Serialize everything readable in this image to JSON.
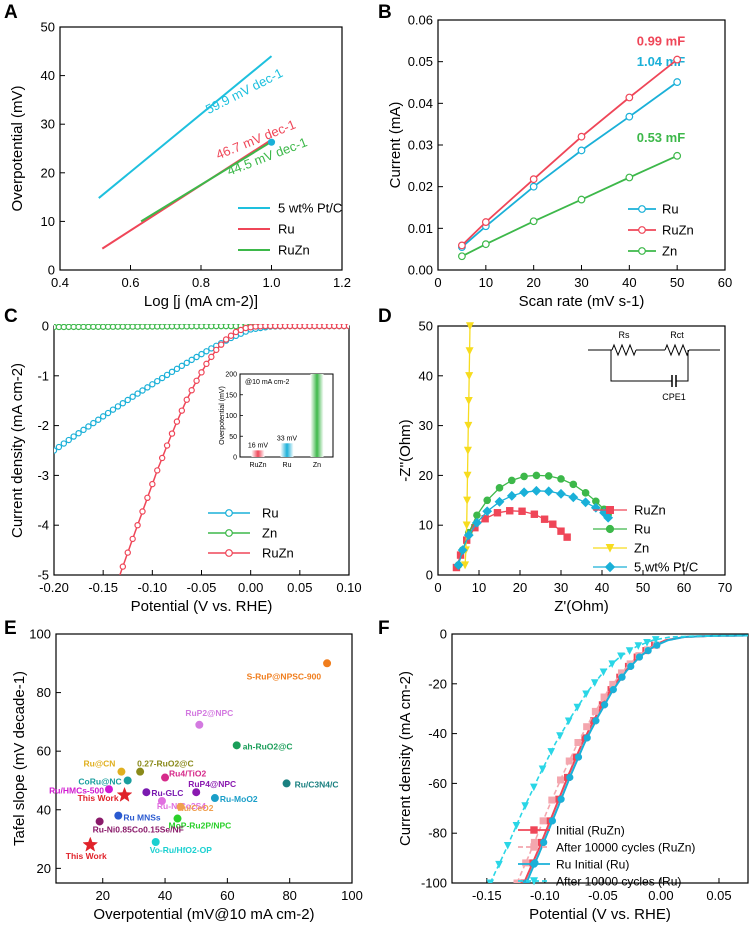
{
  "figure": {
    "panel_labels": [
      "A",
      "B",
      "C",
      "D",
      "E",
      "F"
    ]
  },
  "colors": {
    "pt": "#1ec0de",
    "ru": "#1ab0d8",
    "ruzn": "#ef4658",
    "zn": "#3db84a",
    "pt_yellow": "#f7dc1e",
    "axis": "#000000"
  },
  "chart_data": [
    {
      "panel": "A",
      "type": "line",
      "xlabel": "Log [j (mA cm-2)]",
      "ylabel": "Overpotential  (mV)",
      "xlim": [
        0.4,
        1.2
      ],
      "ylim": [
        0,
        50
      ],
      "xticks": [
        "0.4",
        "0.6",
        "0.8",
        "1.0",
        "1.2"
      ],
      "yticks": [
        "0",
        "10",
        "20",
        "30",
        "40",
        "50"
      ],
      "series": [
        {
          "name": "5 wt% Pt/C",
          "color": "#1ec0de",
          "x": [
            0.51,
            1.0
          ],
          "y": [
            14.8,
            44.0
          ],
          "slope_label": "59.9 mV dec-1"
        },
        {
          "name": "Ru",
          "color": "#ef4658",
          "x": [
            0.52,
            1.0
          ],
          "y": [
            4.4,
            26.8
          ],
          "slope_label": "46.7 mV dec-1"
        },
        {
          "name": "RuZn",
          "color": "#3db84a",
          "x": [
            0.63,
            1.0
          ],
          "y": [
            10.0,
            26.4
          ],
          "slope_label": "44.5 mV dec-1"
        }
      ]
    },
    {
      "panel": "B",
      "type": "line",
      "xlabel": "Scan rate (mV s-1)",
      "ylabel": "Current (mA)",
      "xlim": [
        0,
        60
      ],
      "ylim": [
        0,
        0.06
      ],
      "xticks": [
        "0",
        "10",
        "20",
        "30",
        "40",
        "50",
        "60"
      ],
      "yticks": [
        "0.00",
        "0.01",
        "0.02",
        "0.03",
        "0.04",
        "0.05",
        "0.06"
      ],
      "x": [
        5,
        10,
        20,
        30,
        40,
        50
      ],
      "series": [
        {
          "name": "Ru",
          "color": "#1ab0d8",
          "values": [
            0.0055,
            0.0105,
            0.02,
            0.0287,
            0.0368,
            0.0451
          ],
          "annotation": "1.04 mF"
        },
        {
          "name": "RuZn",
          "color": "#ef4658",
          "values": [
            0.0059,
            0.0115,
            0.0218,
            0.032,
            0.0414,
            0.0505
          ],
          "annotation": "0.99 mF"
        },
        {
          "name": "Zn",
          "color": "#3db84a",
          "values": [
            0.0033,
            0.0062,
            0.0117,
            0.0169,
            0.0222,
            0.0274
          ],
          "annotation": "0.53 mF"
        }
      ]
    },
    {
      "panel": "C",
      "type": "line",
      "xlabel": "Potential (V vs. RHE)",
      "ylabel": "Current density (mA cm-2)",
      "xlim": [
        -0.2,
        0.1
      ],
      "ylim": [
        -5,
        0
      ],
      "xticks": [
        "-0.20",
        "-0.15",
        "-0.10",
        "-0.05",
        "0.00",
        "0.05",
        "0.10"
      ],
      "yticks": [
        "0",
        "-1",
        "-2",
        "-3",
        "-4",
        "-5"
      ],
      "series": [
        {
          "name": "Ru",
          "color": "#1ab0d8",
          "x": [
            -0.2,
            -0.18,
            -0.16,
            -0.14,
            -0.12,
            -0.1,
            -0.08,
            -0.06,
            -0.04,
            -0.02,
            0.0,
            0.02,
            0.04,
            0.1
          ],
          "values": [
            -2.5,
            -2.22,
            -1.95,
            -1.68,
            -1.42,
            -1.17,
            -0.92,
            -0.68,
            -0.45,
            -0.24,
            -0.07,
            -0.01,
            0.0,
            0.0
          ]
        },
        {
          "name": "Zn",
          "color": "#3db84a",
          "x": [
            -0.2,
            -0.1,
            0.0,
            0.1
          ],
          "values": [
            -0.02,
            -0.01,
            0.0,
            0.0
          ]
        },
        {
          "name": "RuZn",
          "color": "#ef4658",
          "x": [
            -0.133,
            -0.125,
            -0.115,
            -0.105,
            -0.095,
            -0.085,
            -0.075,
            -0.065,
            -0.055,
            -0.045,
            -0.035,
            -0.025,
            -0.015,
            -0.005,
            0.005,
            0.015,
            0.03,
            0.06,
            0.1
          ],
          "values": [
            -5.0,
            -4.55,
            -4.0,
            -3.45,
            -2.9,
            -2.4,
            -1.92,
            -1.48,
            -1.1,
            -0.76,
            -0.48,
            -0.27,
            -0.12,
            -0.04,
            -0.01,
            0.0,
            0.0,
            0.0,
            0.0
          ]
        }
      ],
      "inset": {
        "type": "bar",
        "title": "@10 mA cm-2",
        "ylabel": "Overpotential (mV)",
        "ylim": [
          0,
          200
        ],
        "yticks": [
          "0",
          "50",
          "100",
          "150",
          "200"
        ],
        "categories": [
          "RuZn",
          "Ru",
          "Zn"
        ],
        "values": [
          16,
          33,
          200
        ],
        "value_labels": [
          "16 mV",
          "33 mV",
          ""
        ],
        "colors": [
          "#ef4658",
          "#1ab0d8",
          "#3db84a"
        ]
      }
    },
    {
      "panel": "D",
      "type": "scatter",
      "xlabel": "Z'(Ohm)",
      "ylabel": "-Z''(Ohm)",
      "xlim": [
        0,
        70
      ],
      "ylim": [
        0,
        50
      ],
      "xticks": [
        "0",
        "10",
        "20",
        "30",
        "40",
        "50",
        "60",
        "70"
      ],
      "yticks": [
        "0",
        "10",
        "20",
        "30",
        "40",
        "50"
      ],
      "circuit_labels": [
        "Rs",
        "Rct",
        "CPE1"
      ],
      "series": [
        {
          "name": "RuZn",
          "color": "#ef4658",
          "marker": "square",
          "x": [
            4.5,
            5.5,
            7,
            9,
            11.5,
            14.5,
            17.5,
            20.5,
            23.5,
            26,
            28,
            30,
            31.5
          ],
          "values": [
            1.5,
            4,
            7,
            9.5,
            11.3,
            12.5,
            12.9,
            12.8,
            12.2,
            11.2,
            10.2,
            8.8,
            7.6
          ]
        },
        {
          "name": "Ru",
          "color": "#3db84a",
          "marker": "circle",
          "x": [
            5,
            6,
            7.5,
            9.5,
            12,
            15,
            18,
            21,
            24,
            27,
            30,
            33,
            36,
            38.5,
            40.5,
            41.5
          ],
          "values": [
            2,
            5,
            8.5,
            12,
            15,
            17.5,
            19,
            19.8,
            20.0,
            19.9,
            19.3,
            18.2,
            16.5,
            14.8,
            13.2,
            12.1
          ]
        },
        {
          "name": "Zn",
          "color": "#f7dc1e",
          "marker": "triangle-down",
          "x": [
            6.6,
            6.8,
            7.0,
            7.1,
            7.2,
            7.3,
            7.4,
            7.5,
            7.6,
            7.7,
            7.8
          ],
          "values": [
            2,
            5,
            10,
            15,
            20,
            25,
            30,
            35,
            40,
            45,
            50
          ]
        },
        {
          "name": "5 wt% Pt/C",
          "color": "#1ab0d8",
          "marker": "diamond",
          "x": [
            5,
            6,
            7.5,
            9.5,
            12,
            15,
            18,
            21,
            24,
            27,
            30,
            33,
            36,
            38.5,
            40.5,
            41.5
          ],
          "values": [
            2,
            5,
            8,
            10.5,
            12.8,
            14.7,
            15.9,
            16.6,
            16.9,
            16.8,
            16.3,
            15.6,
            14.6,
            13.5,
            12.5,
            11.5
          ]
        }
      ]
    },
    {
      "panel": "E",
      "type": "scatter",
      "xlabel": "Overpotential  (mV@10 mA cm-2)",
      "ylabel": "Tafel slope (mV decade-1)",
      "xlim": [
        5,
        100
      ],
      "ylim": [
        15,
        100
      ],
      "xticks": [
        "20",
        "40",
        "60",
        "80",
        "100"
      ],
      "yticks": [
        "20",
        "40",
        "60",
        "80",
        "100"
      ],
      "points": [
        {
          "label": "S-RuP@NPSC-900",
          "x": 92,
          "y": 90,
          "color": "#f07d1d"
        },
        {
          "label": "RuP2@NPC",
          "x": 51,
          "y": 69,
          "color": "#d37ae0"
        },
        {
          "label": "ah-RuO2@C",
          "x": 63,
          "y": 62,
          "color": "#1a9e59"
        },
        {
          "label": "0.27-RuO2@C",
          "x": 32,
          "y": 53,
          "color": "#8a8a1a"
        },
        {
          "label": "Ru@CN",
          "x": 26,
          "y": 53,
          "color": "#e0b020"
        },
        {
          "label": "CoRu@NC",
          "x": 28,
          "y": 50,
          "color": "#1a9e9e"
        },
        {
          "label": "Ru/C3N4/C",
          "x": 79,
          "y": 49,
          "color": "#1a8080"
        },
        {
          "label": "Ru4/TiO2",
          "x": 40,
          "y": 51,
          "color": "#d62a8a"
        },
        {
          "label": "Ru/HMCs-500",
          "x": 22,
          "y": 47,
          "color": "#d01ad0"
        },
        {
          "label": "RuP4@NPC",
          "x": 50,
          "y": 46,
          "color": "#8a1ab0"
        },
        {
          "label": "Ru-GLC",
          "x": 34,
          "y": 46,
          "color": "#7a1ab0"
        },
        {
          "label": "Ru-MoO2",
          "x": 56,
          "y": 44,
          "color": "#1a9ec8"
        },
        {
          "label": "This Work",
          "x": 27,
          "y": 45,
          "color": "#e0222a",
          "marker": "star"
        },
        {
          "label": "Ru-NiCo2S4",
          "x": 39,
          "y": 43,
          "color": "#e070e0"
        },
        {
          "label": "Ru/CeO2",
          "x": 45,
          "y": 41,
          "color": "#f0a050"
        },
        {
          "label": "Ru MNSs",
          "x": 25,
          "y": 38,
          "color": "#2a5ad0"
        },
        {
          "label": "MoP-Ru2P/NPC",
          "x": 44,
          "y": 37,
          "color": "#2ad02a"
        },
        {
          "label": "Ru-Ni0.85Co0.15Se/NF",
          "x": 19,
          "y": 36,
          "color": "#8a1a6a"
        },
        {
          "label": "Vo-Ru/HfO2-OP",
          "x": 37,
          "y": 29,
          "color": "#1ad0d0"
        },
        {
          "label": "This Work",
          "x": 16,
          "y": 28,
          "color": "#e0222a",
          "marker": "star"
        }
      ]
    },
    {
      "panel": "F",
      "type": "line",
      "xlabel": "Potential (V vs. RHE)",
      "ylabel": "Current density (mA cm-2)",
      "xlim": [
        -0.18,
        0.075
      ],
      "ylim": [
        -100,
        0
      ],
      "xticks": [
        "-0.15",
        "-0.10",
        "-0.05",
        "0.00",
        "0.05"
      ],
      "yticks": [
        "0",
        "-20",
        "-40",
        "-60",
        "-80",
        "-100"
      ],
      "series": [
        {
          "name": "Initial (RuZn)",
          "color": "#ef4658",
          "style": "solid",
          "x": [
            -0.118,
            -0.105,
            -0.092,
            -0.08,
            -0.068,
            -0.056,
            -0.044,
            -0.032,
            -0.02,
            -0.008,
            0.004,
            0.02,
            0.04,
            0.075
          ],
          "values": [
            -100,
            -86,
            -71,
            -57,
            -44,
            -33,
            -23,
            -15,
            -9,
            -5,
            -2.5,
            -1.2,
            -0.8,
            -0.6
          ]
        },
        {
          "name": "After 10000 cycles (RuZn)",
          "color": "#f4a6ae",
          "style": "dashed",
          "x": [
            -0.124,
            -0.111,
            -0.098,
            -0.085,
            -0.072,
            -0.059,
            -0.046,
            -0.033,
            -0.02,
            -0.007,
            0.006,
            0.02,
            0.04,
            0.075
          ],
          "values": [
            -100,
            -86,
            -71,
            -57,
            -44,
            -33,
            -23,
            -15,
            -9,
            -5,
            -2.5,
            -1.2,
            -0.8,
            -0.6
          ]
        },
        {
          "name": "Ru Initial (Ru)",
          "color": "#1ab0d8",
          "style": "solid",
          "x": [
            -0.116,
            -0.103,
            -0.09,
            -0.078,
            -0.066,
            -0.054,
            -0.042,
            -0.03,
            -0.018,
            -0.006,
            0.006,
            0.02,
            0.04,
            0.075
          ],
          "values": [
            -100,
            -86,
            -71,
            -57,
            -44,
            -33,
            -23,
            -15,
            -9,
            -5,
            -2.5,
            -1.2,
            -0.8,
            -0.6
          ]
        },
        {
          "name": "After 10000 cycles (Ru)",
          "color": "#2ad6e6",
          "style": "dashed",
          "x": [
            -0.147,
            -0.133,
            -0.119,
            -0.105,
            -0.091,
            -0.077,
            -0.063,
            -0.049,
            -0.035,
            -0.021,
            -0.007,
            0.008,
            0.03,
            0.075
          ],
          "values": [
            -100,
            -86,
            -71,
            -57,
            -44,
            -33,
            -23,
            -15,
            -9,
            -5,
            -2.5,
            -1.2,
            -0.8,
            -0.6
          ]
        }
      ]
    }
  ]
}
